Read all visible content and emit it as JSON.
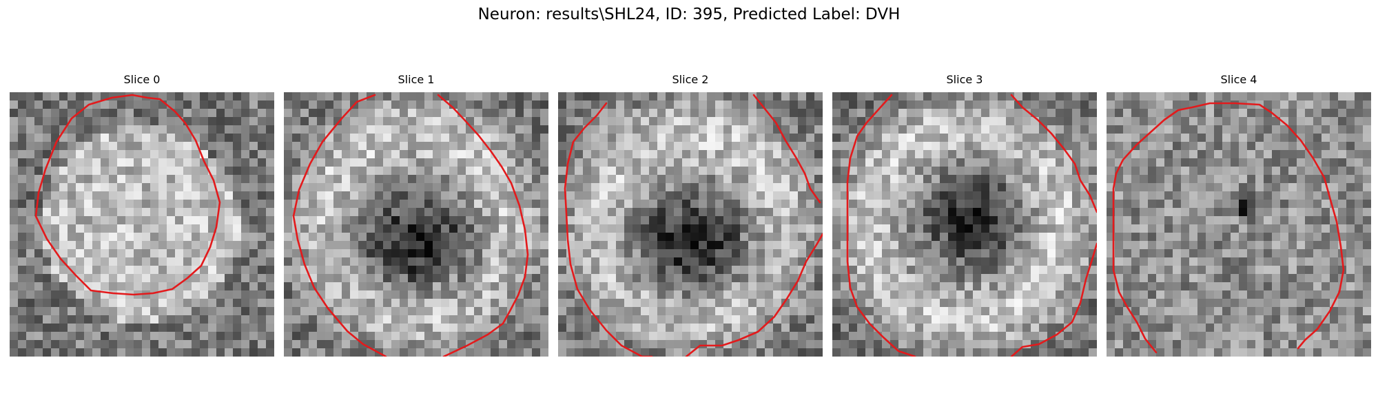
{
  "figure": {
    "title": "Neuron: results\\SHL24, ID: 395, Predicted Label: DVH"
  },
  "colors": {
    "background": "#ffffff",
    "text": "#000000",
    "contour": "#e31a1c",
    "colormap": "grayscale"
  },
  "panels": [
    {
      "title": "Slice 0",
      "seed": 11,
      "pattern": "bright-disk",
      "contour_shape": "closed-octagon"
    },
    {
      "title": "Slice 1",
      "seed": 23,
      "pattern": "bright-ring-dark-center",
      "contour_shape": "open-arc-bottom-gap"
    },
    {
      "title": "Slice 2",
      "seed": 37,
      "pattern": "bright-ring-dark-center",
      "contour_shape": "open-arc-top-bottom-gaps"
    },
    {
      "title": "Slice 3",
      "seed": 53,
      "pattern": "bright-ring-dark-spot",
      "contour_shape": "open-arc-top-bottom-gaps"
    },
    {
      "title": "Slice 4",
      "seed": 71,
      "pattern": "noisy-field-dark-spot",
      "contour_shape": "open-octagon-bottom-gap"
    }
  ]
}
